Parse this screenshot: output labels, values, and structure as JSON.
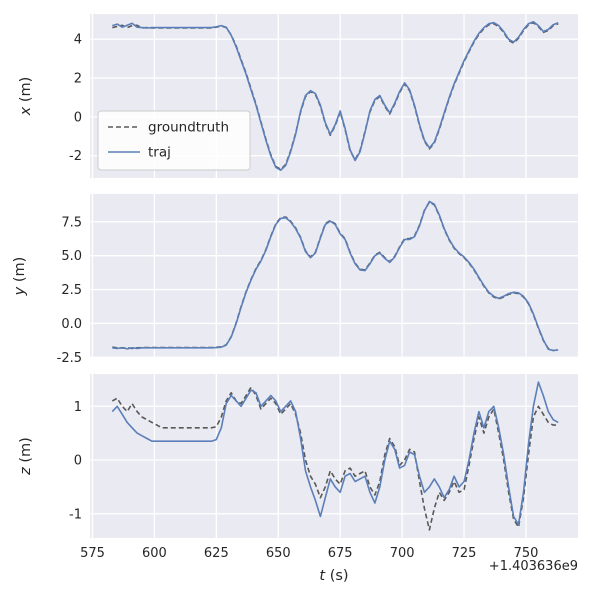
{
  "figure": {
    "offset_text": "+1.403636e9",
    "xlabel": {
      "var": "t",
      "unit": "(s)"
    },
    "colors": {
      "traj": "#5b7fb8",
      "groundtruth": "#595959",
      "axes_bg": "#eaeaf2",
      "grid": "#ffffff",
      "text": "#262626",
      "legend_bg": "#ffffff",
      "legend_border": "#cccccc"
    },
    "legend": {
      "items": [
        {
          "label": "groundtruth",
          "style": "dashed"
        },
        {
          "label": "traj",
          "style": "solid"
        }
      ]
    }
  },
  "chart_data": {
    "type": "line",
    "xlim": [
      574,
      771
    ],
    "xticks": [
      575,
      600,
      625,
      650,
      675,
      700,
      725,
      750
    ],
    "xticklabels": [
      "575",
      "600",
      "625",
      "650",
      "675",
      "700",
      "725",
      "750"
    ],
    "x": [
      583,
      585,
      587,
      589,
      591,
      593,
      595,
      597,
      599,
      601,
      603,
      605,
      607,
      609,
      611,
      613,
      615,
      617,
      619,
      621,
      623,
      625,
      627,
      629,
      631,
      633,
      635,
      637,
      639,
      641,
      643,
      645,
      647,
      649,
      651,
      653,
      655,
      657,
      659,
      661,
      663,
      665,
      667,
      669,
      671,
      673,
      675,
      677,
      679,
      681,
      683,
      685,
      687,
      689,
      691,
      693,
      695,
      697,
      699,
      701,
      703,
      705,
      707,
      709,
      711,
      713,
      715,
      717,
      719,
      721,
      723,
      725,
      727,
      729,
      731,
      733,
      735,
      737,
      739,
      741,
      743,
      745,
      747,
      749,
      751,
      753,
      755,
      757,
      759,
      761,
      763
    ],
    "subplots": [
      {
        "name": "x",
        "ylabel": {
          "var": "x",
          "unit": "(m)"
        },
        "ylim": [
          -3.15,
          5.3
        ],
        "yticks": [
          -2,
          0,
          2,
          4
        ],
        "yticklabels": [
          "-2",
          "0",
          "2",
          "4"
        ],
        "series": [
          {
            "name": "groundtruth",
            "values": [
              4.6,
              4.66,
              4.72,
              4.6,
              4.7,
              4.72,
              4.58,
              4.6,
              4.58,
              4.58,
              4.58,
              4.58,
              4.58,
              4.58,
              4.58,
              4.58,
              4.58,
              4.58,
              4.58,
              4.58,
              4.58,
              4.62,
              4.68,
              4.6,
              4.22,
              3.65,
              2.95,
              2.25,
              1.45,
              0.65,
              -0.25,
              -1.15,
              -1.95,
              -2.55,
              -2.7,
              -2.45,
              -1.75,
              -0.85,
              0.25,
              1.05,
              1.3,
              1.15,
              0.55,
              -0.35,
              -0.95,
              -0.45,
              0.25,
              -0.65,
              -1.75,
              -2.2,
              -1.75,
              -0.75,
              0.25,
              0.85,
              1.05,
              0.55,
              0.15,
              0.65,
              1.25,
              1.7,
              1.35,
              0.55,
              -0.45,
              -1.25,
              -1.65,
              -1.35,
              -0.65,
              0.15,
              0.95,
              1.65,
              2.25,
              2.85,
              3.35,
              3.85,
              4.25,
              4.55,
              4.75,
              4.8,
              4.65,
              4.35,
              3.95,
              3.8,
              4.05,
              4.45,
              4.75,
              4.85,
              4.65,
              4.35,
              4.45,
              4.7,
              4.8
            ]
          },
          {
            "name": "traj",
            "values": [
              4.7,
              4.78,
              4.62,
              4.72,
              4.82,
              4.62,
              4.6,
              4.58,
              4.6,
              4.6,
              4.6,
              4.6,
              4.6,
              4.6,
              4.6,
              4.6,
              4.6,
              4.6,
              4.6,
              4.6,
              4.6,
              4.64,
              4.7,
              4.62,
              4.2,
              3.6,
              2.9,
              2.2,
              1.4,
              0.6,
              -0.3,
              -1.2,
              -2.0,
              -2.6,
              -2.75,
              -2.5,
              -1.8,
              -0.9,
              0.3,
              1.1,
              1.35,
              1.2,
              0.6,
              -0.3,
              -0.9,
              -0.4,
              0.3,
              -0.6,
              -1.7,
              -2.25,
              -1.8,
              -0.8,
              0.3,
              0.9,
              1.1,
              0.6,
              0.2,
              0.7,
              1.3,
              1.75,
              1.4,
              0.6,
              -0.4,
              -1.2,
              -1.6,
              -1.3,
              -0.6,
              0.2,
              1.0,
              1.7,
              2.3,
              2.9,
              3.4,
              3.9,
              4.3,
              4.6,
              4.8,
              4.85,
              4.7,
              4.4,
              4.0,
              3.85,
              4.1,
              4.5,
              4.8,
              4.9,
              4.7,
              4.4,
              4.5,
              4.75,
              4.85
            ]
          }
        ]
      },
      {
        "name": "y",
        "ylabel": {
          "var": "y",
          "unit": "(m)"
        },
        "ylim": [
          -2.55,
          9.55
        ],
        "yticks": [
          -2.5,
          0.0,
          2.5,
          5.0,
          7.5
        ],
        "yticklabels": [
          "-2.5",
          "0.0",
          "2.5",
          "5.0",
          "7.5"
        ],
        "series": [
          {
            "name": "groundtruth",
            "values": [
              -1.75,
              -1.8,
              -1.82,
              -1.78,
              -1.85,
              -1.8,
              -1.78,
              -1.78,
              -1.78,
              -1.78,
              -1.78,
              -1.78,
              -1.78,
              -1.78,
              -1.78,
              -1.78,
              -1.78,
              -1.78,
              -1.78,
              -1.78,
              -1.78,
              -1.76,
              -1.72,
              -1.58,
              -0.98,
              0.05,
              1.25,
              2.35,
              3.25,
              4.05,
              4.65,
              5.45,
              6.45,
              7.35,
              7.8,
              7.85,
              7.55,
              7.05,
              6.35,
              5.35,
              4.9,
              5.25,
              6.35,
              7.35,
              7.6,
              7.35,
              6.65,
              6.25,
              5.25,
              4.45,
              4.0,
              3.95,
              4.45,
              5.05,
              5.25,
              4.85,
              4.55,
              4.95,
              5.65,
              6.25,
              6.25,
              6.45,
              7.25,
              8.35,
              8.95,
              8.75,
              7.95,
              6.95,
              6.15,
              5.55,
              5.15,
              4.85,
              4.45,
              3.95,
              3.35,
              2.75,
              2.25,
              1.95,
              1.8,
              1.95,
              2.15,
              2.25,
              2.2,
              1.95,
              1.45,
              0.65,
              -0.35,
              -1.25,
              -1.85,
              -2.0,
              -1.95
            ]
          },
          {
            "name": "traj",
            "values": [
              -1.8,
              -1.85,
              -1.78,
              -1.88,
              -1.8,
              -1.84,
              -1.8,
              -1.8,
              -1.8,
              -1.8,
              -1.8,
              -1.8,
              -1.8,
              -1.8,
              -1.8,
              -1.8,
              -1.8,
              -1.8,
              -1.8,
              -1.8,
              -1.8,
              -1.78,
              -1.75,
              -1.6,
              -1.0,
              0.0,
              1.2,
              2.3,
              3.2,
              4.0,
              4.6,
              5.4,
              6.4,
              7.3,
              7.75,
              7.8,
              7.5,
              7.0,
              6.3,
              5.3,
              4.85,
              5.2,
              6.3,
              7.3,
              7.55,
              7.3,
              6.6,
              6.2,
              5.2,
              4.4,
              3.95,
              3.9,
              4.4,
              5.0,
              5.2,
              4.8,
              4.5,
              4.9,
              5.6,
              6.2,
              6.2,
              6.4,
              7.2,
              8.3,
              9.0,
              8.8,
              8.0,
              7.0,
              6.2,
              5.6,
              5.2,
              4.9,
              4.5,
              4.0,
              3.4,
              2.8,
              2.3,
              2.0,
              1.85,
              2.0,
              2.2,
              2.3,
              2.25,
              2.0,
              1.5,
              0.7,
              -0.3,
              -1.2,
              -1.9,
              -2.0,
              -1.95
            ]
          }
        ]
      },
      {
        "name": "z",
        "ylabel": {
          "var": "z",
          "unit": "(m)"
        },
        "ylim": [
          -1.45,
          1.6
        ],
        "yticks": [
          -1,
          0,
          1
        ],
        "yticklabels": [
          "-1",
          "0",
          "1"
        ],
        "series": [
          {
            "name": "groundtruth",
            "values": [
              1.1,
              1.15,
              1.0,
              0.9,
              1.05,
              0.9,
              0.8,
              0.75,
              0.7,
              0.65,
              0.6,
              0.6,
              0.6,
              0.6,
              0.6,
              0.6,
              0.6,
              0.6,
              0.6,
              0.6,
              0.6,
              0.62,
              0.8,
              1.1,
              1.25,
              1.1,
              1.05,
              1.2,
              1.35,
              1.2,
              0.95,
              1.05,
              1.15,
              1.05,
              0.85,
              0.95,
              1.05,
              0.85,
              0.5,
              0.0,
              -0.3,
              -0.45,
              -0.7,
              -0.5,
              -0.2,
              -0.35,
              -0.45,
              -0.2,
              -0.15,
              -0.3,
              -0.25,
              -0.2,
              -0.5,
              -0.65,
              -0.4,
              0.1,
              0.4,
              0.25,
              -0.1,
              0.0,
              0.2,
              0.15,
              -0.4,
              -0.9,
              -1.3,
              -0.9,
              -0.6,
              -0.75,
              -0.6,
              -0.4,
              -0.6,
              -0.55,
              -0.1,
              0.4,
              0.8,
              0.5,
              0.8,
              0.95,
              0.5,
              0.0,
              -0.6,
              -1.1,
              -1.25,
              -0.7,
              0.1,
              0.8,
              1.0,
              0.85,
              0.7,
              0.65,
              0.65
            ]
          },
          {
            "name": "traj",
            "values": [
              0.9,
              1.0,
              0.85,
              0.7,
              0.6,
              0.5,
              0.45,
              0.4,
              0.35,
              0.35,
              0.35,
              0.35,
              0.35,
              0.35,
              0.35,
              0.35,
              0.35,
              0.35,
              0.35,
              0.35,
              0.35,
              0.38,
              0.6,
              1.05,
              1.2,
              1.1,
              1.0,
              1.15,
              1.3,
              1.25,
              1.0,
              1.1,
              1.2,
              1.1,
              0.9,
              1.0,
              1.1,
              0.9,
              0.4,
              -0.2,
              -0.5,
              -0.75,
              -1.05,
              -0.7,
              -0.35,
              -0.5,
              -0.6,
              -0.3,
              -0.25,
              -0.4,
              -0.35,
              -0.3,
              -0.6,
              -0.8,
              -0.5,
              0.0,
              0.35,
              0.2,
              -0.15,
              -0.1,
              0.15,
              0.1,
              -0.3,
              -0.6,
              -0.5,
              -0.35,
              -0.5,
              -0.7,
              -0.55,
              -0.3,
              -0.5,
              -0.4,
              0.0,
              0.5,
              0.9,
              0.6,
              0.9,
              1.0,
              0.6,
              0.1,
              -0.5,
              -1.05,
              -1.2,
              -0.6,
              0.3,
              1.0,
              1.45,
              1.2,
              0.9,
              0.75,
              0.7
            ]
          }
        ]
      }
    ]
  }
}
